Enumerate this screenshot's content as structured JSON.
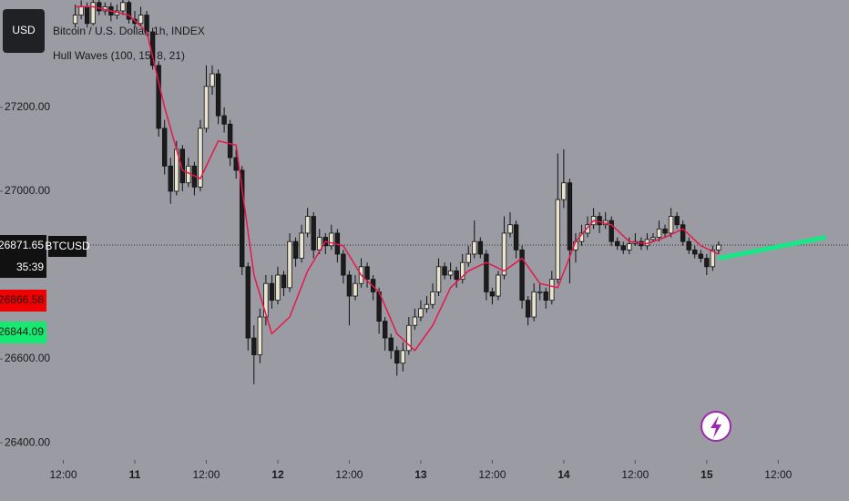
{
  "currency": "USD",
  "symbol": "BTCUSD",
  "chart_data": {
    "type": "candlestick",
    "title": "Bitcoin / U.S. Dollar, 1h, INDEX",
    "up_color": "#e8e4cf",
    "down_color": "#1c1c1c",
    "x": [
      -10,
      -9,
      -8,
      -7,
      -6,
      -5,
      -4,
      -3,
      -2,
      -1,
      0,
      1,
      2,
      3,
      4,
      5,
      6,
      7,
      8,
      9,
      10,
      11,
      12,
      13,
      14,
      15,
      16,
      17,
      18,
      19,
      20,
      21,
      22,
      23,
      24,
      25,
      26,
      27,
      28,
      29,
      30,
      31,
      32,
      33,
      34,
      35,
      36,
      37,
      38,
      39,
      40,
      41,
      42,
      43,
      44,
      45,
      46,
      47,
      48,
      49,
      50,
      51,
      52,
      53,
      54,
      55,
      56,
      57,
      58,
      59,
      60,
      61,
      62,
      63,
      64,
      65,
      66,
      67,
      68,
      69,
      70,
      71,
      72,
      73,
      74,
      75,
      76,
      77,
      78,
      79,
      80,
      81,
      82,
      83,
      84,
      85,
      86,
      87,
      88,
      89,
      90,
      91,
      92,
      93,
      94,
      95,
      96,
      97,
      98
    ],
    "candles": [
      [
        27400,
        27445,
        27390,
        27420
      ],
      [
        27420,
        27455,
        27410,
        27440
      ],
      [
        27440,
        27450,
        27390,
        27400
      ],
      [
        27400,
        27456,
        27395,
        27450
      ],
      [
        27450,
        27456,
        27420,
        27430
      ],
      [
        27430,
        27450,
        27420,
        27440
      ],
      [
        27440,
        27450,
        27405,
        27420
      ],
      [
        27420,
        27445,
        27410,
        27430
      ],
      [
        27430,
        27456,
        27420,
        27450
      ],
      [
        27450,
        27455,
        27400,
        27410
      ],
      [
        27410,
        27430,
        27390,
        27400
      ],
      [
        27400,
        27440,
        27395,
        27420
      ],
      [
        27420,
        27430,
        27370,
        27380
      ],
      [
        27380,
        27390,
        27290,
        27300
      ],
      [
        27300,
        27310,
        27130,
        27150
      ],
      [
        27150,
        27170,
        27040,
        27060
      ],
      [
        27060,
        27080,
        26970,
        27000
      ],
      [
        27000,
        27120,
        26990,
        27100
      ],
      [
        27100,
        27110,
        27000,
        27020
      ],
      [
        27020,
        27080,
        27010,
        27060
      ],
      [
        27060,
        27070,
        26990,
        27010
      ],
      [
        27010,
        27170,
        27000,
        27150
      ],
      [
        27150,
        27300,
        27140,
        27250
      ],
      [
        27250,
        27300,
        27230,
        27280
      ],
      [
        27280,
        27290,
        27160,
        27180
      ],
      [
        27180,
        27200,
        27140,
        27160
      ],
      [
        27160,
        27170,
        27060,
        27080
      ],
      [
        27080,
        27100,
        27030,
        27050
      ],
      [
        27050,
        27060,
        26800,
        26820
      ],
      [
        26820,
        26830,
        26620,
        26650
      ],
      [
        26650,
        26680,
        26540,
        26610
      ],
      [
        26610,
        26720,
        26590,
        26700
      ],
      [
        26700,
        26800,
        26680,
        26780
      ],
      [
        26780,
        26800,
        26720,
        26740
      ],
      [
        26740,
        26820,
        26730,
        26800
      ],
      [
        26800,
        26810,
        26750,
        26770
      ],
      [
        26770,
        26900,
        26760,
        26880
      ],
      [
        26880,
        26890,
        26820,
        26840
      ],
      [
        26840,
        26920,
        26830,
        26900
      ],
      [
        26900,
        26960,
        26890,
        26940
      ],
      [
        26940,
        26950,
        26840,
        26860
      ],
      [
        26860,
        26910,
        26850,
        26890
      ],
      [
        26890,
        26900,
        26850,
        26870
      ],
      [
        26870,
        26920,
        26860,
        26900
      ],
      [
        26900,
        26910,
        26830,
        26850
      ],
      [
        26850,
        26860,
        26780,
        26800
      ],
      [
        26800,
        26810,
        26680,
        26750
      ],
      [
        26750,
        26800,
        26740,
        26780
      ],
      [
        26780,
        26840,
        26770,
        26820
      ],
      [
        26820,
        26830,
        26770,
        26790
      ],
      [
        26790,
        26800,
        26740,
        26760
      ],
      [
        26760,
        26770,
        26660,
        26690
      ],
      [
        26690,
        26700,
        26620,
        26650
      ],
      [
        26650,
        26660,
        26600,
        26620
      ],
      [
        26620,
        26630,
        26560,
        26590
      ],
      [
        26590,
        26640,
        26570,
        26620
      ],
      [
        26620,
        26700,
        26610,
        26680
      ],
      [
        26680,
        26720,
        26670,
        26700
      ],
      [
        26700,
        26740,
        26690,
        26720
      ],
      [
        26720,
        26750,
        26710,
        26730
      ],
      [
        26730,
        26780,
        26720,
        26760
      ],
      [
        26760,
        26840,
        26750,
        26820
      ],
      [
        26820,
        26830,
        26790,
        26800
      ],
      [
        26800,
        26830,
        26790,
        26810
      ],
      [
        26810,
        26820,
        26770,
        26790
      ],
      [
        26790,
        26850,
        26780,
        26830
      ],
      [
        26830,
        26870,
        26820,
        26850
      ],
      [
        26850,
        26930,
        26840,
        26880
      ],
      [
        26880,
        26890,
        26840,
        26850
      ],
      [
        26850,
        26860,
        26740,
        26760
      ],
      [
        26760,
        26770,
        26730,
        26750
      ],
      [
        26750,
        26810,
        26740,
        26800
      ],
      [
        26800,
        26940,
        26790,
        26900
      ],
      [
        26900,
        26950,
        26890,
        26920
      ],
      [
        26920,
        26930,
        26840,
        26860
      ],
      [
        26860,
        26870,
        26720,
        26740
      ],
      [
        26740,
        26750,
        26680,
        26700
      ],
      [
        26700,
        26780,
        26690,
        26760
      ],
      [
        26760,
        26780,
        26740,
        26760
      ],
      [
        26760,
        26770,
        26720,
        26740
      ],
      [
        26740,
        26810,
        26730,
        26790
      ],
      [
        26790,
        27090,
        26780,
        26980
      ],
      [
        26980,
        27100,
        26960,
        27020
      ],
      [
        27020,
        27030,
        26780,
        26860
      ],
      [
        26860,
        26900,
        26830,
        26880
      ],
      [
        26880,
        26920,
        26870,
        26900
      ],
      [
        26900,
        26940,
        26890,
        26920
      ],
      [
        26920,
        26960,
        26910,
        26940
      ],
      [
        26940,
        26950,
        26900,
        26920
      ],
      [
        26920,
        26950,
        26910,
        26930
      ],
      [
        26930,
        26940,
        26870,
        26880
      ],
      [
        26880,
        26890,
        26860,
        26870
      ],
      [
        26870,
        26880,
        26850,
        26860
      ],
      [
        26860,
        26890,
        26850,
        26875
      ],
      [
        26875,
        26900,
        26870,
        26880
      ],
      [
        26880,
        26890,
        26860,
        26870
      ],
      [
        26870,
        26900,
        26860,
        26885
      ],
      [
        26885,
        26900,
        26880,
        26890
      ],
      [
        26890,
        26930,
        26880,
        26910
      ],
      [
        26910,
        26920,
        26890,
        26900
      ],
      [
        26900,
        26960,
        26890,
        26940
      ],
      [
        26940,
        26950,
        26910,
        26920
      ],
      [
        26920,
        26930,
        26870,
        26880
      ],
      [
        26880,
        26890,
        26850,
        26860
      ],
      [
        26860,
        26870,
        26840,
        26850
      ],
      [
        26850,
        26860,
        26830,
        26840
      ],
      [
        26840,
        26850,
        26800,
        26820
      ],
      [
        26820,
        26870,
        26810,
        26860
      ],
      [
        26860,
        26880,
        26850,
        26871.65
      ]
    ],
    "hull": {
      "name": "Hull Waves (100, 15, 8, 21)",
      "color": "#e8174a",
      "x": [
        -10,
        -7,
        -4,
        -1,
        2,
        5,
        8,
        11,
        14,
        17,
        20,
        23,
        26,
        29,
        32,
        35,
        38,
        41,
        44,
        47,
        50,
        53,
        56,
        59,
        62,
        65,
        68,
        71,
        74,
        77,
        80,
        83,
        86,
        89,
        92,
        95,
        98
      ],
      "values": [
        27440,
        27440,
        27430,
        27420,
        27380,
        27200,
        27050,
        27030,
        27120,
        27110,
        26800,
        26660,
        26700,
        26810,
        26880,
        26870,
        26800,
        26760,
        26660,
        26620,
        26680,
        26770,
        26810,
        26830,
        26810,
        26840,
        26780,
        26770,
        26880,
        26930,
        26920,
        26880,
        26875,
        26890,
        26910,
        26870,
        26850
      ]
    },
    "projection": {
      "color": "#17e887",
      "x": [
        98,
        116
      ],
      "values": [
        26840,
        26890
      ]
    },
    "last_price": 26871.65,
    "countdown": "35:39",
    "hull_upper": 26866.58,
    "hull_lower": 26844.09,
    "xlim": [
      -22.63,
      119.88
    ],
    "xticks": [
      {
        "value": -12,
        "label": "12:00"
      },
      {
        "value": 0,
        "label": "11"
      },
      {
        "value": 12,
        "label": "12:00"
      },
      {
        "value": 24,
        "label": "12"
      },
      {
        "value": 36,
        "label": "12:00"
      },
      {
        "value": 48,
        "label": "13"
      },
      {
        "value": 60,
        "label": "12:00"
      },
      {
        "value": 72,
        "label": "14"
      },
      {
        "value": 84,
        "label": "12:00"
      },
      {
        "value": 96,
        "label": "15"
      },
      {
        "value": 108,
        "label": "12:00"
      }
    ],
    "ylim": [
      26359,
      27456
    ],
    "yticks": [
      {
        "value": 27200,
        "label": "27200.00"
      },
      {
        "value": 27000,
        "label": "27000.00"
      },
      {
        "value": 26600,
        "label": "26600.00"
      },
      {
        "value": 26400,
        "label": "26400.00"
      }
    ]
  }
}
